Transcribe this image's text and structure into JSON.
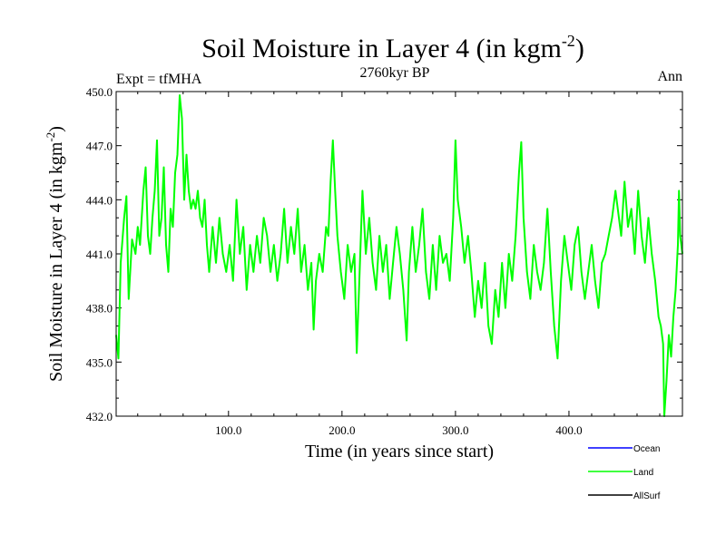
{
  "chart_data": {
    "type": "line",
    "title": "Soil Moisture in Layer 4 (in kgm",
    "title_sup": "-2",
    "title_close": ")",
    "subtitle_left": "Expt = tfMHA",
    "subtitle_center": "2760kyr BP",
    "subtitle_right": "Ann",
    "xlabel": "Time (in years since start)",
    "ylabel": "Soil Moisture in Layer 4 (in kgm",
    "ylabel_sup": "-2",
    "ylabel_close": ")",
    "xlim": [
      1,
      500
    ],
    "ylim": [
      432.0,
      450.0
    ],
    "xticks": [
      100,
      200,
      300,
      400
    ],
    "xtick_labels": [
      "100.0",
      "200.0",
      "300.0",
      "400.0"
    ],
    "yticks": [
      432,
      435,
      438,
      441,
      444,
      447,
      450
    ],
    "ytick_labels": [
      "432.0",
      "435.0",
      "438.0",
      "441.0",
      "444.0",
      "447.0",
      "450.0"
    ],
    "series": [
      {
        "name": "Land",
        "color": "#00ff00",
        "points": [
          [
            1,
            436.5
          ],
          [
            3,
            435.2
          ],
          [
            5,
            440.5
          ],
          [
            8,
            443.0
          ],
          [
            10,
            444.2
          ],
          [
            12,
            438.5
          ],
          [
            15,
            441.8
          ],
          [
            18,
            441.0
          ],
          [
            20,
            442.5
          ],
          [
            22,
            441.5
          ],
          [
            25,
            444.5
          ],
          [
            27,
            445.8
          ],
          [
            29,
            442.0
          ],
          [
            31,
            441.0
          ],
          [
            33,
            443.0
          ],
          [
            35,
            444.5
          ],
          [
            37,
            447.3
          ],
          [
            39,
            442.0
          ],
          [
            41,
            443.0
          ],
          [
            43,
            445.8
          ],
          [
            45,
            441.5
          ],
          [
            47,
            440.0
          ],
          [
            49,
            443.5
          ],
          [
            51,
            442.5
          ],
          [
            53,
            445.5
          ],
          [
            55,
            446.5
          ],
          [
            57,
            449.8
          ],
          [
            59,
            448.5
          ],
          [
            61,
            444.0
          ],
          [
            63,
            446.5
          ],
          [
            65,
            444.5
          ],
          [
            67,
            443.5
          ],
          [
            69,
            444.0
          ],
          [
            71,
            443.5
          ],
          [
            73,
            444.5
          ],
          [
            75,
            443.0
          ],
          [
            77,
            442.5
          ],
          [
            79,
            444.0
          ],
          [
            81,
            441.5
          ],
          [
            83,
            440.0
          ],
          [
            86,
            442.5
          ],
          [
            89,
            440.5
          ],
          [
            92,
            443.0
          ],
          [
            95,
            441.0
          ],
          [
            98,
            440.0
          ],
          [
            101,
            441.5
          ],
          [
            104,
            439.5
          ],
          [
            107,
            444.0
          ],
          [
            110,
            441.0
          ],
          [
            113,
            442.5
          ],
          [
            116,
            439.0
          ],
          [
            119,
            441.5
          ],
          [
            122,
            440.0
          ],
          [
            125,
            442.0
          ],
          [
            128,
            440.5
          ],
          [
            131,
            443.0
          ],
          [
            134,
            442.0
          ],
          [
            137,
            440.0
          ],
          [
            140,
            441.5
          ],
          [
            143,
            439.5
          ],
          [
            146,
            441.0
          ],
          [
            149,
            443.5
          ],
          [
            152,
            440.5
          ],
          [
            155,
            442.5
          ],
          [
            158,
            441.0
          ],
          [
            161,
            443.5
          ],
          [
            164,
            440.0
          ],
          [
            167,
            441.5
          ],
          [
            170,
            439.0
          ],
          [
            173,
            440.5
          ],
          [
            175,
            436.8
          ],
          [
            177,
            439.5
          ],
          [
            180,
            441.0
          ],
          [
            183,
            440.0
          ],
          [
            186,
            442.5
          ],
          [
            188,
            442.0
          ],
          [
            190,
            445.0
          ],
          [
            192,
            447.3
          ],
          [
            194,
            444.5
          ],
          [
            196,
            442.0
          ],
          [
            199,
            440.0
          ],
          [
            202,
            438.5
          ],
          [
            205,
            441.5
          ],
          [
            208,
            440.0
          ],
          [
            211,
            441.0
          ],
          [
            213,
            435.5
          ],
          [
            215,
            439.0
          ],
          [
            218,
            444.5
          ],
          [
            221,
            441.0
          ],
          [
            224,
            443.0
          ],
          [
            227,
            440.5
          ],
          [
            230,
            439.0
          ],
          [
            233,
            442.0
          ],
          [
            236,
            440.0
          ],
          [
            239,
            441.5
          ],
          [
            242,
            438.5
          ],
          [
            245,
            440.5
          ],
          [
            248,
            442.5
          ],
          [
            251,
            441.0
          ],
          [
            254,
            439.0
          ],
          [
            257,
            436.2
          ],
          [
            259,
            440.0
          ],
          [
            262,
            442.5
          ],
          [
            265,
            440.0
          ],
          [
            268,
            441.5
          ],
          [
            271,
            443.5
          ],
          [
            274,
            440.0
          ],
          [
            277,
            438.5
          ],
          [
            280,
            441.5
          ],
          [
            283,
            439.0
          ],
          [
            286,
            442.0
          ],
          [
            289,
            440.5
          ],
          [
            292,
            441.0
          ],
          [
            295,
            439.5
          ],
          [
            298,
            443.0
          ],
          [
            300,
            447.3
          ],
          [
            302,
            444.0
          ],
          [
            305,
            442.5
          ],
          [
            308,
            440.5
          ],
          [
            311,
            442.0
          ],
          [
            314,
            440.0
          ],
          [
            317,
            437.5
          ],
          [
            320,
            439.5
          ],
          [
            323,
            438.0
          ],
          [
            326,
            440.5
          ],
          [
            329,
            437.0
          ],
          [
            332,
            436.0
          ],
          [
            335,
            439.0
          ],
          [
            338,
            437.5
          ],
          [
            341,
            440.5
          ],
          [
            344,
            438.0
          ],
          [
            347,
            441.0
          ],
          [
            350,
            439.5
          ],
          [
            353,
            442.0
          ],
          [
            356,
            445.5
          ],
          [
            358,
            447.2
          ],
          [
            360,
            443.0
          ],
          [
            363,
            440.0
          ],
          [
            366,
            438.5
          ],
          [
            369,
            441.5
          ],
          [
            372,
            440.0
          ],
          [
            375,
            439.0
          ],
          [
            378,
            440.5
          ],
          [
            381,
            443.5
          ],
          [
            384,
            440.0
          ],
          [
            387,
            437.0
          ],
          [
            390,
            435.2
          ],
          [
            393,
            439.5
          ],
          [
            396,
            442.0
          ],
          [
            399,
            440.5
          ],
          [
            402,
            439.0
          ],
          [
            405,
            441.5
          ],
          [
            408,
            442.5
          ],
          [
            411,
            440.0
          ],
          [
            414,
            438.5
          ],
          [
            417,
            440.0
          ],
          [
            420,
            441.5
          ],
          [
            423,
            439.5
          ],
          [
            426,
            438.0
          ],
          [
            429,
            440.5
          ],
          [
            432,
            441.0
          ],
          [
            435,
            442.0
          ],
          [
            438,
            443.0
          ],
          [
            441,
            444.5
          ],
          [
            444,
            443.0
          ],
          [
            446,
            442.0
          ],
          [
            449,
            445.0
          ],
          [
            452,
            442.5
          ],
          [
            455,
            443.5
          ],
          [
            458,
            441.0
          ],
          [
            461,
            444.5
          ],
          [
            464,
            442.0
          ],
          [
            467,
            440.5
          ],
          [
            470,
            443.0
          ],
          [
            473,
            441.0
          ],
          [
            476,
            439.5
          ],
          [
            479,
            437.5
          ],
          [
            481,
            437.0
          ],
          [
            483,
            436.0
          ],
          [
            484,
            432.0
          ],
          [
            486,
            434.0
          ],
          [
            488,
            436.5
          ],
          [
            490,
            435.3
          ],
          [
            492,
            437.5
          ],
          [
            494,
            439.0
          ],
          [
            496,
            441.5
          ],
          [
            497,
            444.5
          ],
          [
            498,
            442.0
          ],
          [
            500,
            441.0
          ]
        ]
      }
    ],
    "legend": [
      {
        "label": "Ocean",
        "color": "#0000ff"
      },
      {
        "label": "Land",
        "color": "#00ff00"
      },
      {
        "label": "AllSurf",
        "color": "#000000"
      }
    ],
    "legend_position": "bottom-right"
  }
}
